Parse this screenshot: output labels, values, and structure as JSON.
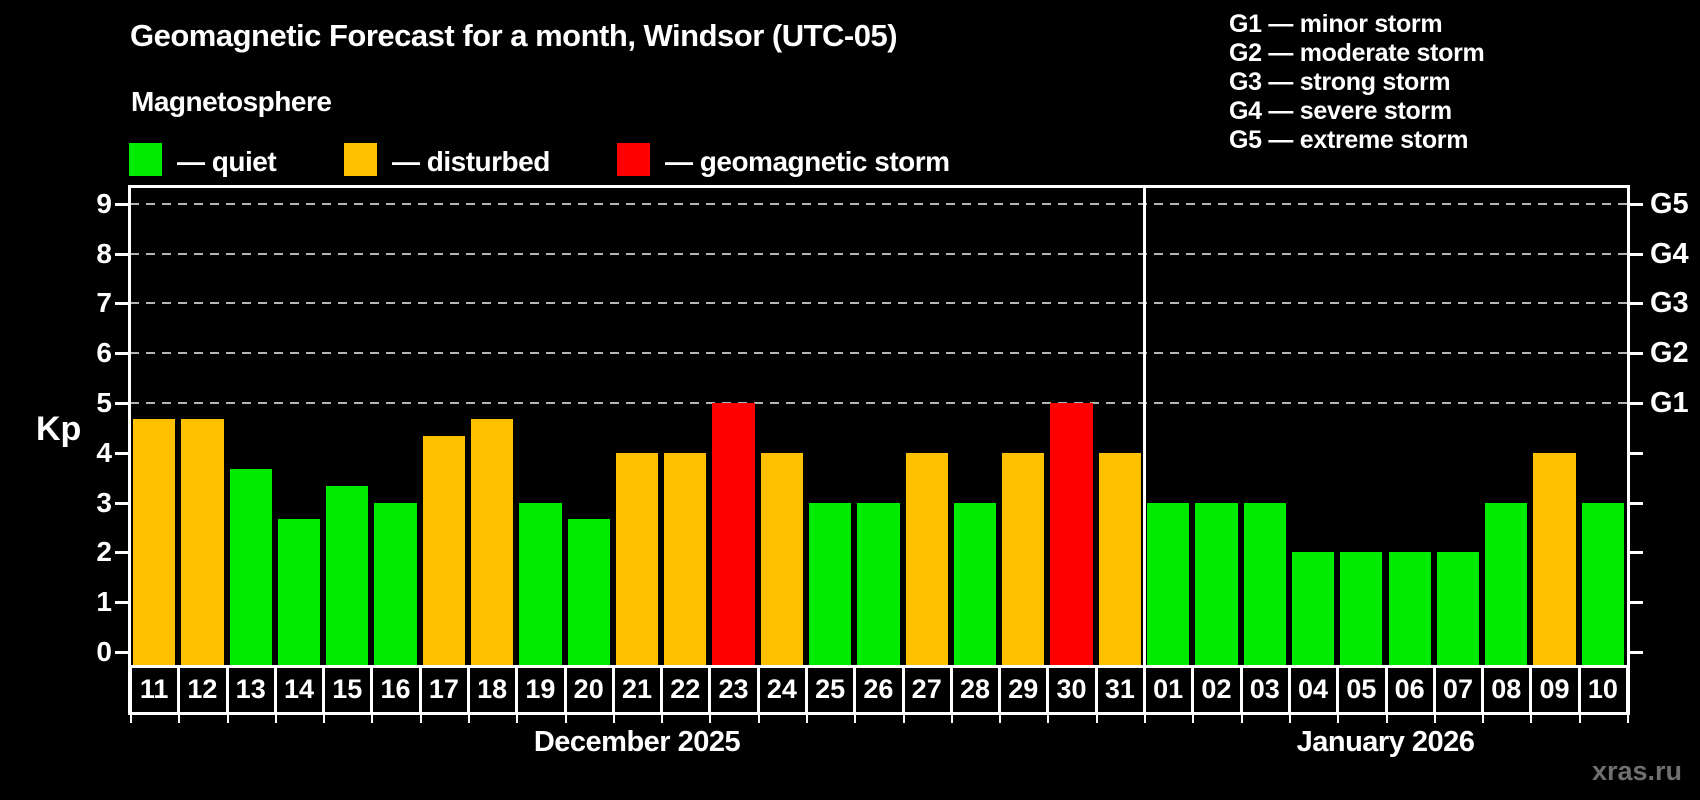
{
  "header": {
    "title": "Geomagnetic Forecast for a month, Windsor (UTC-05)",
    "subtitle": "Magnetosphere"
  },
  "legend": {
    "items": [
      {
        "key": "quiet",
        "label": "— quiet",
        "color": "#00EB00"
      },
      {
        "key": "disturbed",
        "label": "— disturbed",
        "color": "#FFC000"
      },
      {
        "key": "storm",
        "label": "— geomagnetic storm",
        "color": "#FF0000"
      }
    ]
  },
  "storm_scale_legend": {
    "items": [
      "G1 — minor storm",
      "G2 — moderate storm",
      "G3 — strong storm",
      "G4 — severe storm",
      "G5 — extreme storm"
    ]
  },
  "chart_data": {
    "type": "bar",
    "ylabel": "Kp",
    "ylim": [
      0,
      9
    ],
    "y_ticks": [
      0,
      1,
      2,
      3,
      4,
      5,
      6,
      7,
      8,
      9
    ],
    "gridlines_kp": [
      5,
      6,
      7,
      8,
      9
    ],
    "right_axis": [
      {
        "kp": 5,
        "label": "G1"
      },
      {
        "kp": 6,
        "label": "G2"
      },
      {
        "kp": 7,
        "label": "G3"
      },
      {
        "kp": 8,
        "label": "G4"
      },
      {
        "kp": 9,
        "label": "G5"
      }
    ],
    "color_rules": {
      "disturbed_from": 4,
      "storm_from": 5
    },
    "months": [
      {
        "label": "December 2025",
        "days": [
          "11",
          "12",
          "13",
          "14",
          "15",
          "16",
          "17",
          "18",
          "19",
          "20",
          "21",
          "22",
          "23",
          "24",
          "25",
          "26",
          "27",
          "28",
          "29",
          "30",
          "31"
        ],
        "values": [
          4.67,
          4.67,
          3.67,
          2.67,
          3.33,
          3,
          4.33,
          4.67,
          3,
          2.67,
          4,
          4,
          5,
          4,
          3,
          3,
          4,
          3,
          4,
          5,
          4
        ]
      },
      {
        "label": "January 2026",
        "days": [
          "01",
          "02",
          "03",
          "04",
          "05",
          "06",
          "07",
          "08",
          "09",
          "10"
        ],
        "values": [
          3,
          3,
          3,
          2,
          2,
          2,
          2,
          3,
          4,
          3
        ]
      }
    ]
  },
  "watermark": "xras.ru",
  "colors": {
    "background": "#000000",
    "quiet": "#00EB00",
    "disturbed": "#FFC000",
    "storm": "#FF0000",
    "axis": "#FFFFFF",
    "gridline": "#B4B4B4",
    "watermark_gray": "#6F6F6F"
  }
}
